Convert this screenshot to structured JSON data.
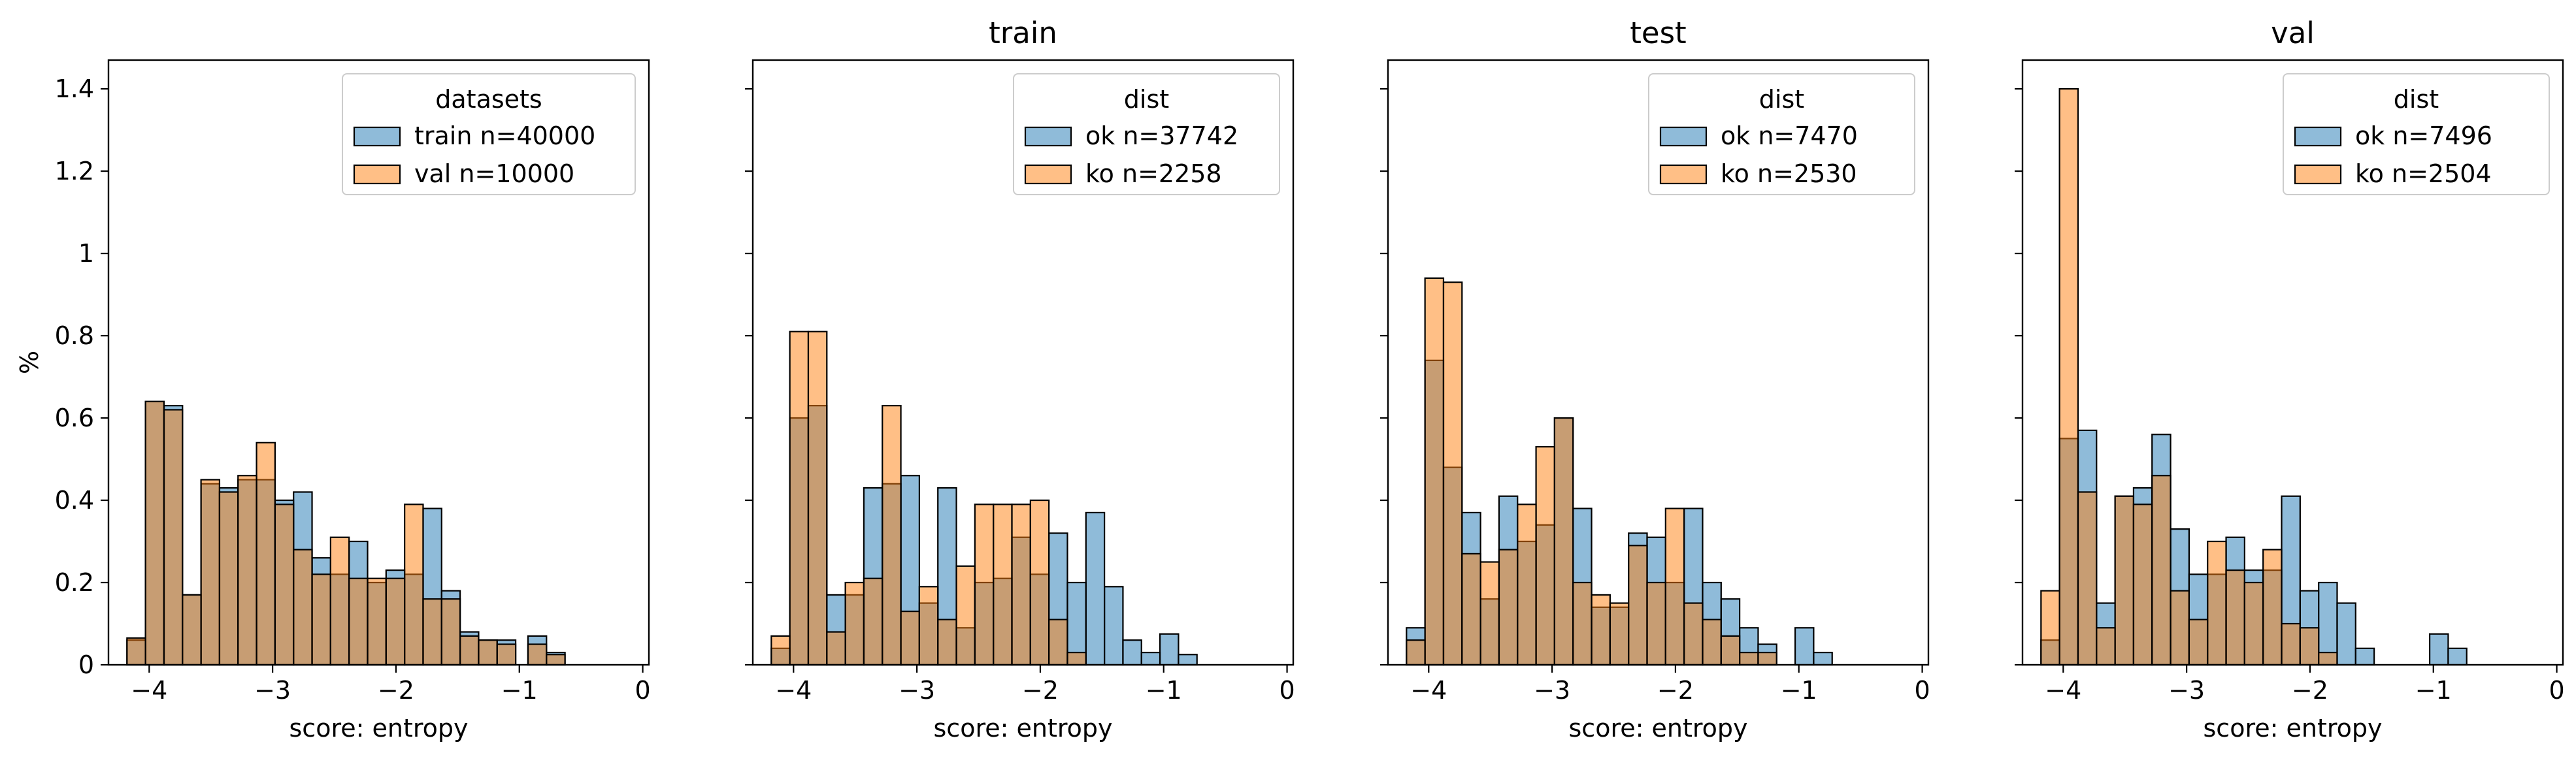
{
  "figure": {
    "ylabel": "%",
    "xlabel": "score: entropy"
  },
  "colors": {
    "blue": "#1f77b4",
    "orange": "#ff7f0e",
    "edge": "#000000"
  },
  "chart_data": [
    {
      "type": "bar",
      "title": "",
      "xlabel": "score: entropy",
      "ylabel": "%",
      "xlim": [
        -4.33,
        0.05
      ],
      "ylim": [
        0,
        1.47
      ],
      "x_ticks": [
        -4,
        -3,
        -2,
        -1,
        0
      ],
      "y_ticks": [
        0.0,
        0.2,
        0.4,
        0.6,
        0.8,
        1.0,
        1.2,
        1.4
      ],
      "legend": {
        "title": "datasets",
        "position": "top-right"
      },
      "series": [
        {
          "name": "train n=40000",
          "color": "blue",
          "bins": [
            [
              -4.18,
              -4.03,
              0.06
            ],
            [
              -4.03,
              -3.88,
              0.64
            ],
            [
              -3.88,
              -3.73,
              0.63
            ],
            [
              -3.73,
              -3.58,
              0.17
            ],
            [
              -3.58,
              -3.43,
              0.44
            ],
            [
              -3.43,
              -3.28,
              0.43
            ],
            [
              -3.28,
              -3.13,
              0.45
            ],
            [
              -3.13,
              -2.98,
              0.45
            ],
            [
              -2.98,
              -2.83,
              0.4
            ],
            [
              -2.83,
              -2.68,
              0.42
            ],
            [
              -2.68,
              -2.53,
              0.26
            ],
            [
              -2.53,
              -2.38,
              0.22
            ],
            [
              -2.38,
              -2.23,
              0.3
            ],
            [
              -2.23,
              -2.08,
              0.2
            ],
            [
              -2.08,
              -1.93,
              0.23
            ],
            [
              -1.93,
              -1.78,
              0.22
            ],
            [
              -1.78,
              -1.63,
              0.38
            ],
            [
              -1.63,
              -1.48,
              0.18
            ],
            [
              -1.48,
              -1.33,
              0.08
            ],
            [
              -1.33,
              -1.18,
              0.06
            ],
            [
              -1.18,
              -1.03,
              0.06
            ],
            [
              -0.93,
              -0.78,
              0.07
            ],
            [
              -0.78,
              -0.63,
              0.03
            ]
          ]
        },
        {
          "name": "val n=10000",
          "color": "orange",
          "bins": [
            [
              -4.18,
              -4.03,
              0.065
            ],
            [
              -4.03,
              -3.88,
              0.64
            ],
            [
              -3.88,
              -3.73,
              0.62
            ],
            [
              -3.73,
              -3.58,
              0.17
            ],
            [
              -3.58,
              -3.43,
              0.45
            ],
            [
              -3.43,
              -3.28,
              0.42
            ],
            [
              -3.28,
              -3.13,
              0.46
            ],
            [
              -3.13,
              -2.98,
              0.54
            ],
            [
              -2.98,
              -2.83,
              0.39
            ],
            [
              -2.83,
              -2.68,
              0.28
            ],
            [
              -2.68,
              -2.53,
              0.22
            ],
            [
              -2.53,
              -2.38,
              0.31
            ],
            [
              -2.38,
              -2.23,
              0.21
            ],
            [
              -2.23,
              -2.08,
              0.21
            ],
            [
              -2.08,
              -1.93,
              0.21
            ],
            [
              -1.93,
              -1.78,
              0.39
            ],
            [
              -1.78,
              -1.63,
              0.16
            ],
            [
              -1.63,
              -1.48,
              0.16
            ],
            [
              -1.48,
              -1.33,
              0.07
            ],
            [
              -1.33,
              -1.18,
              0.06
            ],
            [
              -1.18,
              -1.03,
              0.05
            ],
            [
              -0.93,
              -0.78,
              0.05
            ],
            [
              -0.78,
              -0.63,
              0.025
            ]
          ]
        }
      ]
    },
    {
      "type": "bar",
      "title": "train",
      "xlabel": "score: entropy",
      "xlim": [
        -4.33,
        0.05
      ],
      "ylim": [
        0,
        1.47
      ],
      "x_ticks": [
        -4,
        -3,
        -2,
        -1,
        0
      ],
      "legend": {
        "title": "dist",
        "position": "top-right"
      },
      "series": [
        {
          "name": "ok n=37742",
          "color": "blue",
          "bins": [
            [
              -4.18,
              -4.03,
              0.04
            ],
            [
              -4.03,
              -3.88,
              0.6
            ],
            [
              -3.88,
              -3.73,
              0.63
            ],
            [
              -3.73,
              -3.58,
              0.17
            ],
            [
              -3.58,
              -3.43,
              0.17
            ],
            [
              -3.43,
              -3.28,
              0.43
            ],
            [
              -3.28,
              -3.13,
              0.44
            ],
            [
              -3.13,
              -2.98,
              0.46
            ],
            [
              -2.98,
              -2.83,
              0.15
            ],
            [
              -2.83,
              -2.68,
              0.43
            ],
            [
              -2.68,
              -2.53,
              0.09
            ],
            [
              -2.53,
              -2.38,
              0.2
            ],
            [
              -2.38,
              -2.23,
              0.21
            ],
            [
              -2.23,
              -2.08,
              0.31
            ],
            [
              -2.08,
              -1.93,
              0.22
            ],
            [
              -1.93,
              -1.78,
              0.32
            ],
            [
              -1.78,
              -1.63,
              0.2
            ],
            [
              -1.63,
              -1.48,
              0.37
            ],
            [
              -1.48,
              -1.33,
              0.19
            ],
            [
              -1.33,
              -1.18,
              0.06
            ],
            [
              -1.18,
              -1.03,
              0.03
            ],
            [
              -1.03,
              -0.88,
              0.075
            ],
            [
              -0.88,
              -0.73,
              0.025
            ]
          ]
        },
        {
          "name": "ko n=2258",
          "color": "orange",
          "bins": [
            [
              -4.18,
              -4.03,
              0.07
            ],
            [
              -4.03,
              -3.88,
              0.81
            ],
            [
              -3.88,
              -3.73,
              0.81
            ],
            [
              -3.73,
              -3.58,
              0.08
            ],
            [
              -3.58,
              -3.43,
              0.2
            ],
            [
              -3.43,
              -3.28,
              0.21
            ],
            [
              -3.28,
              -3.13,
              0.63
            ],
            [
              -3.13,
              -2.98,
              0.13
            ],
            [
              -2.98,
              -2.83,
              0.19
            ],
            [
              -2.83,
              -2.68,
              0.11
            ],
            [
              -2.68,
              -2.53,
              0.24
            ],
            [
              -2.53,
              -2.38,
              0.39
            ],
            [
              -2.38,
              -2.23,
              0.39
            ],
            [
              -2.23,
              -2.08,
              0.39
            ],
            [
              -2.08,
              -1.93,
              0.4
            ],
            [
              -1.93,
              -1.78,
              0.11
            ],
            [
              -1.78,
              -1.63,
              0.03
            ]
          ]
        }
      ]
    },
    {
      "type": "bar",
      "title": "test",
      "xlabel": "score: entropy",
      "xlim": [
        -4.33,
        0.05
      ],
      "ylim": [
        0,
        1.47
      ],
      "x_ticks": [
        -4,
        -3,
        -2,
        -1,
        0
      ],
      "legend": {
        "title": "dist",
        "position": "top-right"
      },
      "series": [
        {
          "name": "ok n=7470",
          "color": "blue",
          "bins": [
            [
              -4.18,
              -4.03,
              0.09
            ],
            [
              -4.03,
              -3.88,
              0.74
            ],
            [
              -3.88,
              -3.73,
              0.48
            ],
            [
              -3.73,
              -3.58,
              0.37
            ],
            [
              -3.58,
              -3.43,
              0.16
            ],
            [
              -3.43,
              -3.28,
              0.41
            ],
            [
              -3.28,
              -3.13,
              0.3
            ],
            [
              -3.13,
              -2.98,
              0.34
            ],
            [
              -2.98,
              -2.83,
              0.6
            ],
            [
              -2.83,
              -2.68,
              0.38
            ],
            [
              -2.68,
              -2.53,
              0.14
            ],
            [
              -2.53,
              -2.38,
              0.14
            ],
            [
              -2.38,
              -2.23,
              0.32
            ],
            [
              -2.23,
              -2.08,
              0.31
            ],
            [
              -2.08,
              -1.93,
              0.2
            ],
            [
              -1.93,
              -1.78,
              0.38
            ],
            [
              -1.78,
              -1.63,
              0.2
            ],
            [
              -1.63,
              -1.48,
              0.16
            ],
            [
              -1.48,
              -1.33,
              0.09
            ],
            [
              -1.33,
              -1.18,
              0.05
            ],
            [
              -1.03,
              -0.88,
              0.09
            ],
            [
              -0.88,
              -0.73,
              0.03
            ]
          ]
        },
        {
          "name": "ko n=2530",
          "color": "orange",
          "bins": [
            [
              -4.18,
              -4.03,
              0.06
            ],
            [
              -4.03,
              -3.88,
              0.94
            ],
            [
              -3.88,
              -3.73,
              0.93
            ],
            [
              -3.73,
              -3.58,
              0.27
            ],
            [
              -3.58,
              -3.43,
              0.25
            ],
            [
              -3.43,
              -3.28,
              0.28
            ],
            [
              -3.28,
              -3.13,
              0.39
            ],
            [
              -3.13,
              -2.98,
              0.53
            ],
            [
              -2.98,
              -2.83,
              0.6
            ],
            [
              -2.83,
              -2.68,
              0.2
            ],
            [
              -2.68,
              -2.53,
              0.17
            ],
            [
              -2.53,
              -2.38,
              0.15
            ],
            [
              -2.38,
              -2.23,
              0.29
            ],
            [
              -2.23,
              -2.08,
              0.2
            ],
            [
              -2.08,
              -1.93,
              0.38
            ],
            [
              -1.93,
              -1.78,
              0.15
            ],
            [
              -1.78,
              -1.63,
              0.11
            ],
            [
              -1.63,
              -1.48,
              0.07
            ],
            [
              -1.48,
              -1.33,
              0.03
            ],
            [
              -1.33,
              -1.18,
              0.03
            ]
          ]
        }
      ]
    },
    {
      "type": "bar",
      "title": "val",
      "xlabel": "score: entropy",
      "xlim": [
        -4.33,
        0.05
      ],
      "ylim": [
        0,
        1.47
      ],
      "x_ticks": [
        -4,
        -3,
        -2,
        -1,
        0
      ],
      "legend": {
        "title": "dist",
        "position": "top-right"
      },
      "series": [
        {
          "name": "ok n=7496",
          "color": "blue",
          "bins": [
            [
              -4.18,
              -4.03,
              0.06
            ],
            [
              -4.03,
              -3.88,
              0.55
            ],
            [
              -3.88,
              -3.73,
              0.57
            ],
            [
              -3.73,
              -3.58,
              0.15
            ],
            [
              -3.58,
              -3.43,
              0.41
            ],
            [
              -3.43,
              -3.28,
              0.43
            ],
            [
              -3.28,
              -3.13,
              0.56
            ],
            [
              -3.13,
              -2.98,
              0.33
            ],
            [
              -2.98,
              -2.83,
              0.22
            ],
            [
              -2.83,
              -2.68,
              0.22
            ],
            [
              -2.68,
              -2.53,
              0.31
            ],
            [
              -2.53,
              -2.38,
              0.23
            ],
            [
              -2.38,
              -2.23,
              0.23
            ],
            [
              -2.23,
              -2.08,
              0.41
            ],
            [
              -2.08,
              -1.93,
              0.18
            ],
            [
              -1.93,
              -1.78,
              0.2
            ],
            [
              -1.78,
              -1.63,
              0.15
            ],
            [
              -1.63,
              -1.48,
              0.04
            ],
            [
              -1.03,
              -0.88,
              0.075
            ],
            [
              -0.88,
              -0.73,
              0.04
            ]
          ]
        },
        {
          "name": "ko n=2504",
          "color": "orange",
          "bins": [
            [
              -4.18,
              -4.03,
              0.18
            ],
            [
              -4.03,
              -3.88,
              1.4
            ],
            [
              -3.88,
              -3.73,
              0.42
            ],
            [
              -3.73,
              -3.58,
              0.09
            ],
            [
              -3.58,
              -3.43,
              0.41
            ],
            [
              -3.43,
              -3.28,
              0.39
            ],
            [
              -3.28,
              -3.13,
              0.46
            ],
            [
              -3.13,
              -2.98,
              0.18
            ],
            [
              -2.98,
              -2.83,
              0.11
            ],
            [
              -2.83,
              -2.68,
              0.3
            ],
            [
              -2.68,
              -2.53,
              0.23
            ],
            [
              -2.53,
              -2.38,
              0.2
            ],
            [
              -2.38,
              -2.23,
              0.28
            ],
            [
              -2.23,
              -2.08,
              0.1
            ],
            [
              -2.08,
              -1.93,
              0.09
            ],
            [
              -1.93,
              -1.78,
              0.03
            ]
          ]
        }
      ]
    }
  ]
}
